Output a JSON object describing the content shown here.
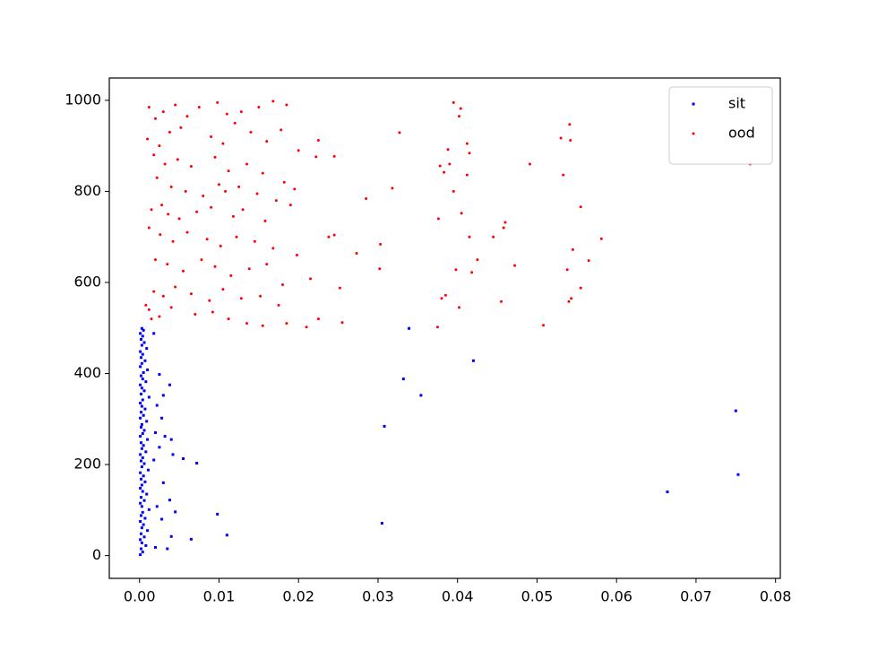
{
  "chart_data": {
    "type": "scatter",
    "legend": "upper right",
    "xlim": [
      -0.0038,
      0.0806
    ],
    "ylim": [
      -50,
      1049
    ],
    "xticks": [
      {
        "value": 0,
        "label": "0.00"
      },
      {
        "value": 0.01,
        "label": "0.01"
      },
      {
        "value": 0.02,
        "label": "0.02"
      },
      {
        "value": 0.03,
        "label": "0.03"
      },
      {
        "value": 0.04,
        "label": "0.04"
      },
      {
        "value": 0.05,
        "label": "0.05"
      },
      {
        "value": 0.06,
        "label": "0.06"
      },
      {
        "value": 0.07,
        "label": "0.07"
      },
      {
        "value": 0.08,
        "label": "0.08"
      }
    ],
    "yticks": [
      0,
      200,
      400,
      600,
      800,
      1000
    ],
    "series": [
      {
        "name": "sit",
        "color": "#0000ff",
        "marker": "s",
        "x": [
          0.0001,
          0.0004,
          0.0002,
          0.0008,
          0.0003,
          0.0001,
          0.0006,
          0.0002,
          0.001,
          0.0003,
          0.0005,
          0.0001,
          0.0007,
          0.0002,
          0.0004,
          0.0012,
          0.0003,
          0.0001,
          0.0006,
          0.0002,
          0.0009,
          0.0004,
          0.0001,
          0.0003,
          0.0007,
          0.0002,
          0.0005,
          0.0001,
          0.0011,
          0.0003,
          0.0006,
          0.0002,
          0.0004,
          0.0001,
          0.0008,
          0.0003,
          0.0005,
          0.0002,
          0.001,
          0.0001,
          0.0004,
          0.0006,
          0.0002,
          0.0003,
          0.0009,
          0.0001,
          0.0005,
          0.0002,
          0.0007,
          0.0003,
          0.0001,
          0.0004,
          0.0012,
          0.0002,
          0.0006,
          0.0003,
          0.0001,
          0.0008,
          0.0004,
          0.0002,
          0.0005,
          0.001,
          0.0001,
          0.0003,
          0.0007,
          0.0002,
          0.0004,
          0.0001,
          0.0009,
          0.0003,
          0.0006,
          0.0002,
          0.0004,
          0.0001,
          0.0005,
          0.0003,
          0.0018,
          0.0025,
          0.003,
          0.0022,
          0.0028,
          0.002,
          0.0032,
          0.004,
          0.0025,
          0.0018,
          0.003,
          0.0038,
          0.0022,
          0.0045,
          0.0028,
          0.004,
          0.002,
          0.0035,
          0.0038,
          0.0042,
          0.0055,
          0.0072,
          0.0065,
          0.0098,
          0.011,
          0.0305,
          0.0308,
          0.0332,
          0.0339,
          0.0354,
          0.042,
          0.0664,
          0.075,
          0.0753
        ],
        "values": [
          2,
          8,
          15,
          22,
          28,
          35,
          41,
          48,
          55,
          61,
          68,
          75,
          82,
          88,
          95,
          101,
          108,
          115,
          121,
          128,
          135,
          141,
          148,
          155,
          162,
          168,
          175,
          182,
          188,
          195,
          202,
          208,
          215,
          222,
          228,
          235,
          242,
          248,
          255,
          262,
          268,
          275,
          282,
          288,
          295,
          302,
          308,
          315,
          322,
          328,
          335,
          342,
          348,
          355,
          362,
          368,
          375,
          382,
          388,
          395,
          402,
          408,
          415,
          422,
          428,
          435,
          442,
          448,
          455,
          462,
          468,
          475,
          482,
          488,
          495,
          499,
          488,
          398,
          352,
          330,
          302,
          270,
          262,
          255,
          238,
          210,
          160,
          122,
          108,
          96,
          80,
          42,
          18,
          15,
          375,
          222,
          213,
          203,
          36,
          91,
          45,
          71,
          284,
          388,
          499,
          352,
          428,
          140,
          318,
          178
        ]
      },
      {
        "name": "ood",
        "color": "#ff0000",
        "marker": "o",
        "x": [
          0.0012,
          0.002,
          0.003,
          0.0045,
          0.006,
          0.0075,
          0.0098,
          0.011,
          0.0128,
          0.015,
          0.0168,
          0.0185,
          0.001,
          0.0025,
          0.0038,
          0.0052,
          0.009,
          0.0105,
          0.012,
          0.014,
          0.016,
          0.0178,
          0.02,
          0.0018,
          0.0032,
          0.0048,
          0.0065,
          0.0095,
          0.0112,
          0.0135,
          0.0155,
          0.0182,
          0.0022,
          0.004,
          0.0058,
          0.008,
          0.01,
          0.0108,
          0.0125,
          0.0148,
          0.0172,
          0.0195,
          0.0015,
          0.0028,
          0.0036,
          0.005,
          0.0072,
          0.009,
          0.0118,
          0.013,
          0.0158,
          0.019,
          0.0012,
          0.0026,
          0.0042,
          0.006,
          0.0085,
          0.0102,
          0.0122,
          0.0145,
          0.0168,
          0.0198,
          0.002,
          0.0035,
          0.0055,
          0.0078,
          0.0095,
          0.0115,
          0.0138,
          0.016,
          0.018,
          0.0018,
          0.003,
          0.0045,
          0.0065,
          0.0088,
          0.0105,
          0.0128,
          0.0152,
          0.0175,
          0.0012,
          0.0025,
          0.004,
          0.007,
          0.0092,
          0.0112,
          0.0135,
          0.0155,
          0.0185,
          0.0008,
          0.0015,
          0.0768,
          0.0555,
          0.0581,
          0.0545,
          0.0565,
          0.0538,
          0.0555,
          0.054,
          0.0543,
          0.0508,
          0.0472,
          0.0455,
          0.046,
          0.0445,
          0.0458,
          0.0491,
          0.053,
          0.0541,
          0.0542,
          0.0533,
          0.0395,
          0.0402,
          0.0404,
          0.0412,
          0.0415,
          0.0327,
          0.0318,
          0.0303,
          0.0302,
          0.0285,
          0.0273,
          0.0238,
          0.0245,
          0.0252,
          0.0255,
          0.0245,
          0.0222,
          0.0225,
          0.0215,
          0.021,
          0.0225,
          0.0383,
          0.0378,
          0.0388,
          0.039,
          0.0405,
          0.0415,
          0.0418,
          0.0425,
          0.0398,
          0.0402,
          0.0375,
          0.038,
          0.0385,
          0.0376,
          0.0395,
          0.0412
        ],
        "values": [
          985,
          960,
          975,
          990,
          965,
          985,
          995,
          970,
          975,
          985,
          998,
          990,
          915,
          900,
          930,
          940,
          920,
          905,
          950,
          930,
          910,
          935,
          890,
          880,
          860,
          870,
          855,
          875,
          845,
          860,
          840,
          820,
          830,
          810,
          800,
          790,
          815,
          800,
          810,
          795,
          780,
          805,
          760,
          770,
          750,
          740,
          755,
          765,
          745,
          760,
          735,
          770,
          720,
          705,
          690,
          710,
          695,
          680,
          700,
          690,
          675,
          660,
          650,
          640,
          625,
          650,
          635,
          615,
          630,
          640,
          595,
          580,
          570,
          590,
          575,
          560,
          585,
          565,
          570,
          550,
          540,
          525,
          545,
          530,
          535,
          520,
          510,
          505,
          510,
          550,
          520,
          860,
          766,
          696,
          672,
          648,
          628,
          588,
          558,
          565,
          506,
          637,
          558,
          732,
          700,
          720,
          860,
          917,
          947,
          912,
          836,
          995,
          965,
          982,
          905,
          884,
          929,
          807,
          684,
          630,
          784,
          664,
          700,
          704,
          588,
          512,
          877,
          876,
          912,
          608,
          502,
          520,
          842,
          856,
          892,
          860,
          752,
          700,
          622,
          650,
          628,
          545,
          502,
          565,
          572,
          740,
          800,
          836
        ]
      }
    ]
  }
}
